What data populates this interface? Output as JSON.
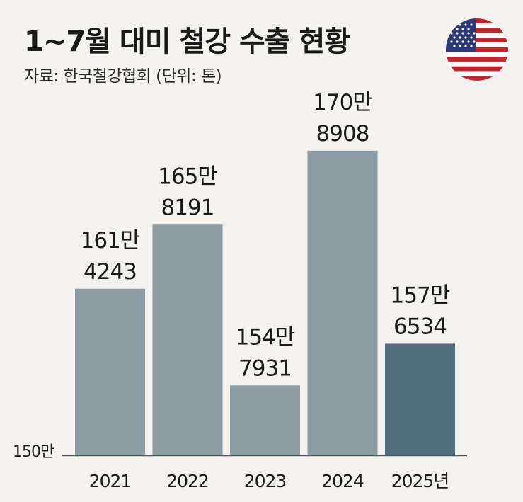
{
  "header": {
    "title": "1~7월 대미 철강 수출 현황",
    "source": "자료: 한국철강협회 (단위: 톤)",
    "flag_icon": "us-flag-icon"
  },
  "chart_data": {
    "type": "bar",
    "categories": [
      "2021",
      "2022",
      "2023",
      "2024",
      "2025년"
    ],
    "values": [
      1614243,
      1658191,
      1547931,
      1708908,
      1576534
    ],
    "data_labels": [
      [
        "161만",
        "4243"
      ],
      [
        "165만",
        "8191"
      ],
      [
        "154만",
        "7931"
      ],
      [
        "170만",
        "8908"
      ],
      [
        "157만",
        "6534"
      ]
    ],
    "ylabel": "150만",
    "ylim": [
      1500000,
      1720000
    ],
    "highlight_index": 4,
    "colors": {
      "bar": "#8d9ba2",
      "highlight": "#536f7f",
      "axis": "#555555"
    },
    "grid": false,
    "legend": "none"
  }
}
